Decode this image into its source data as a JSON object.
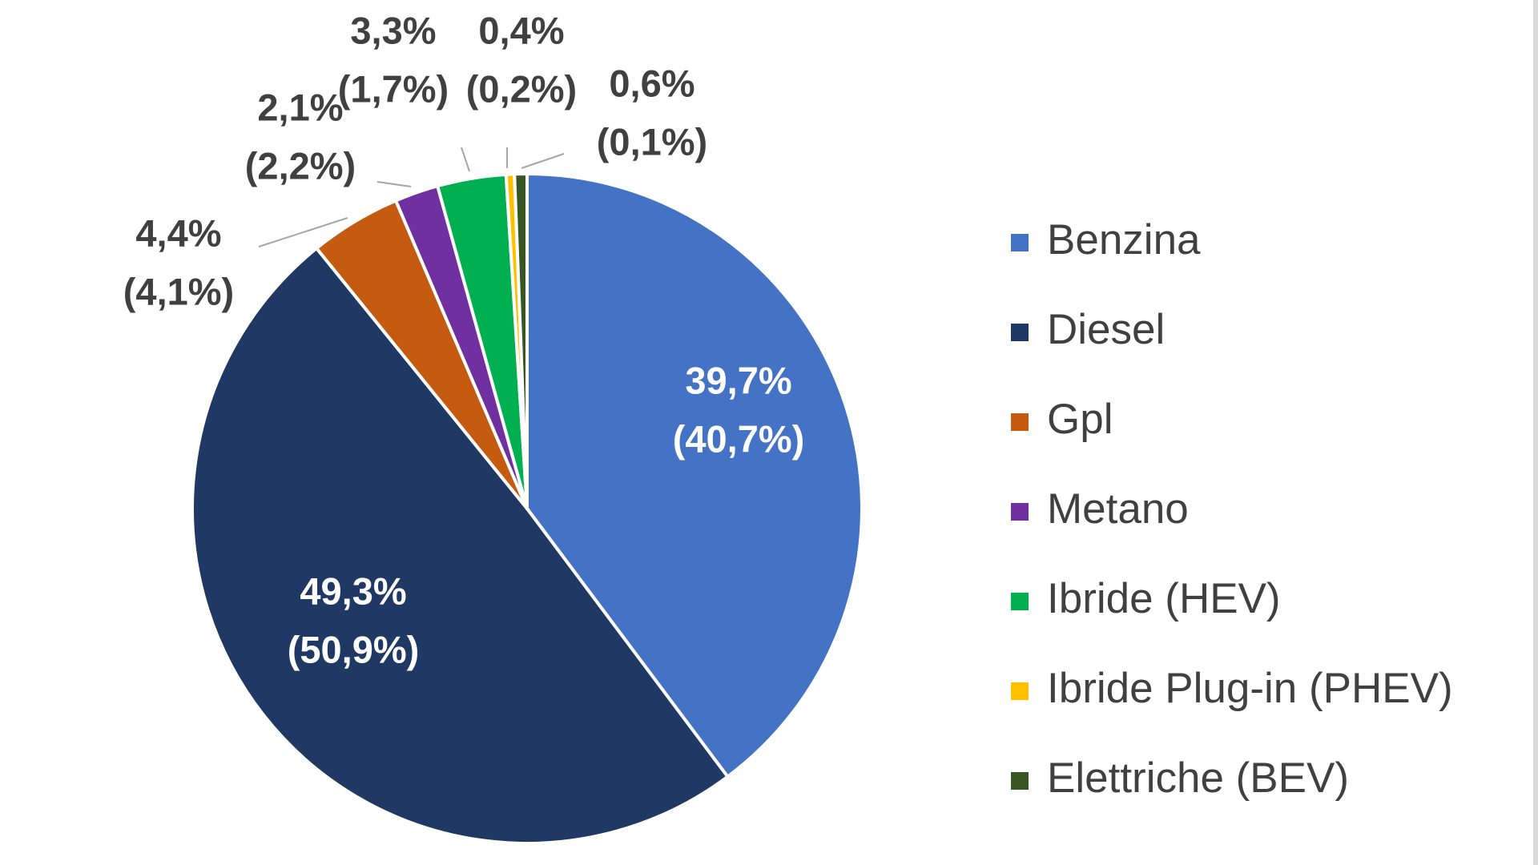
{
  "chart_data": {
    "type": "pie",
    "categories": [
      "Benzina",
      "Diesel",
      "Gpl",
      "Metano",
      "Ibride (HEV)",
      "Ibride Plug-in  (PHEV)",
      "Elettriche (BEV)"
    ],
    "series": [
      {
        "values": [
          39.7,
          49.3,
          4.4,
          2.1,
          3.3,
          0.4,
          0.6
        ]
      },
      {
        "values": [
          40.7,
          50.9,
          4.1,
          2.2,
          1.7,
          0.2,
          0.1
        ]
      }
    ],
    "data_labels": [
      [
        "39,7%",
        "(40,7%)"
      ],
      [
        "49,3%",
        "(50,9%)"
      ],
      [
        "4,4%",
        "(4,1%)"
      ],
      [
        "2,1%",
        "(2,2%)"
      ],
      [
        "3,3%",
        "(1,7%)"
      ],
      [
        "0,4%",
        "(0,2%)"
      ],
      [
        "0,6%",
        "(0,1%)"
      ]
    ],
    "colors": [
      "#4472c4",
      "#203864",
      "#c55a11",
      "#7030a0",
      "#00b050",
      "#ffc000",
      "#375623"
    ],
    "start_angle": "top",
    "direction": "clockwise",
    "legend_position": "right"
  }
}
